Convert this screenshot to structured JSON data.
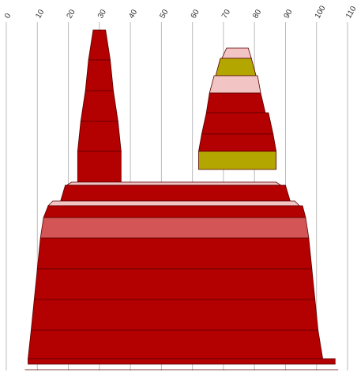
{
  "chart_data": {
    "type": "area",
    "x_axis": {
      "min": 0,
      "max": 110,
      "ticks": [
        0,
        10,
        20,
        30,
        40,
        50,
        60,
        70,
        80,
        90,
        100,
        110
      ],
      "tick_labels": [
        "0",
        "10",
        "20",
        "30",
        "40",
        "50",
        "60",
        "70",
        "80",
        "90",
        "100",
        "110"
      ],
      "position": "top",
      "label_rotation": -60
    },
    "grid": true,
    "legend": "none",
    "colors": {
      "dark_red": "#b30000",
      "medium_red": "#d45555",
      "light_pink": "#f2c4c4",
      "olive": "#b3a600",
      "edge": "#5a0000",
      "grid": "#bbbbbb"
    },
    "series": [
      {
        "left": 28,
        "right": 32,
        "color": "dark_red"
      },
      {
        "left": 26.5,
        "right": 33.5,
        "color": "dark_red"
      },
      {
        "left": 25.5,
        "right": 34.5,
        "color": "dark_red"
      },
      {
        "left": 24,
        "right": 36,
        "color": "dark_red"
      },
      {
        "left": 23,
        "right": 37,
        "color": "dark_red"
      },
      {
        "left": 71,
        "right": 78,
        "color": "light_pink"
      },
      {
        "left": 69,
        "right": 79,
        "color": "olive"
      },
      {
        "left": 67,
        "right": 81,
        "color": "light_pink"
      },
      {
        "left": 65.5,
        "right": 82,
        "color": "dark_red"
      },
      {
        "left": 64.5,
        "right": 84.5,
        "color": "dark_red"
      },
      {
        "left": 63,
        "right": 86,
        "color": "dark_red"
      },
      {
        "left": 62,
        "right": 87,
        "color": "olive"
      },
      {
        "left": 21,
        "right": 87,
        "color": "light_pink"
      },
      {
        "left": 19,
        "right": 90,
        "color": "dark_red"
      },
      {
        "left": 15,
        "right": 93,
        "color": "light_pink"
      },
      {
        "left": 13.5,
        "right": 95.5,
        "color": "dark_red"
      },
      {
        "left": 12,
        "right": 96.5,
        "color": "medium_red"
      },
      {
        "left": 11,
        "right": 97.5,
        "color": "dark_red"
      },
      {
        "left": 10,
        "right": 98.5,
        "color": "dark_red"
      },
      {
        "left": 9,
        "right": 99.5,
        "color": "dark_red"
      },
      {
        "left": 8,
        "right": 100.5,
        "color": "dark_red"
      },
      {
        "left": 7,
        "right": 106,
        "color": "dark_red"
      },
      {
        "left": 6,
        "right": 107,
        "color": "dark_red"
      }
    ]
  }
}
